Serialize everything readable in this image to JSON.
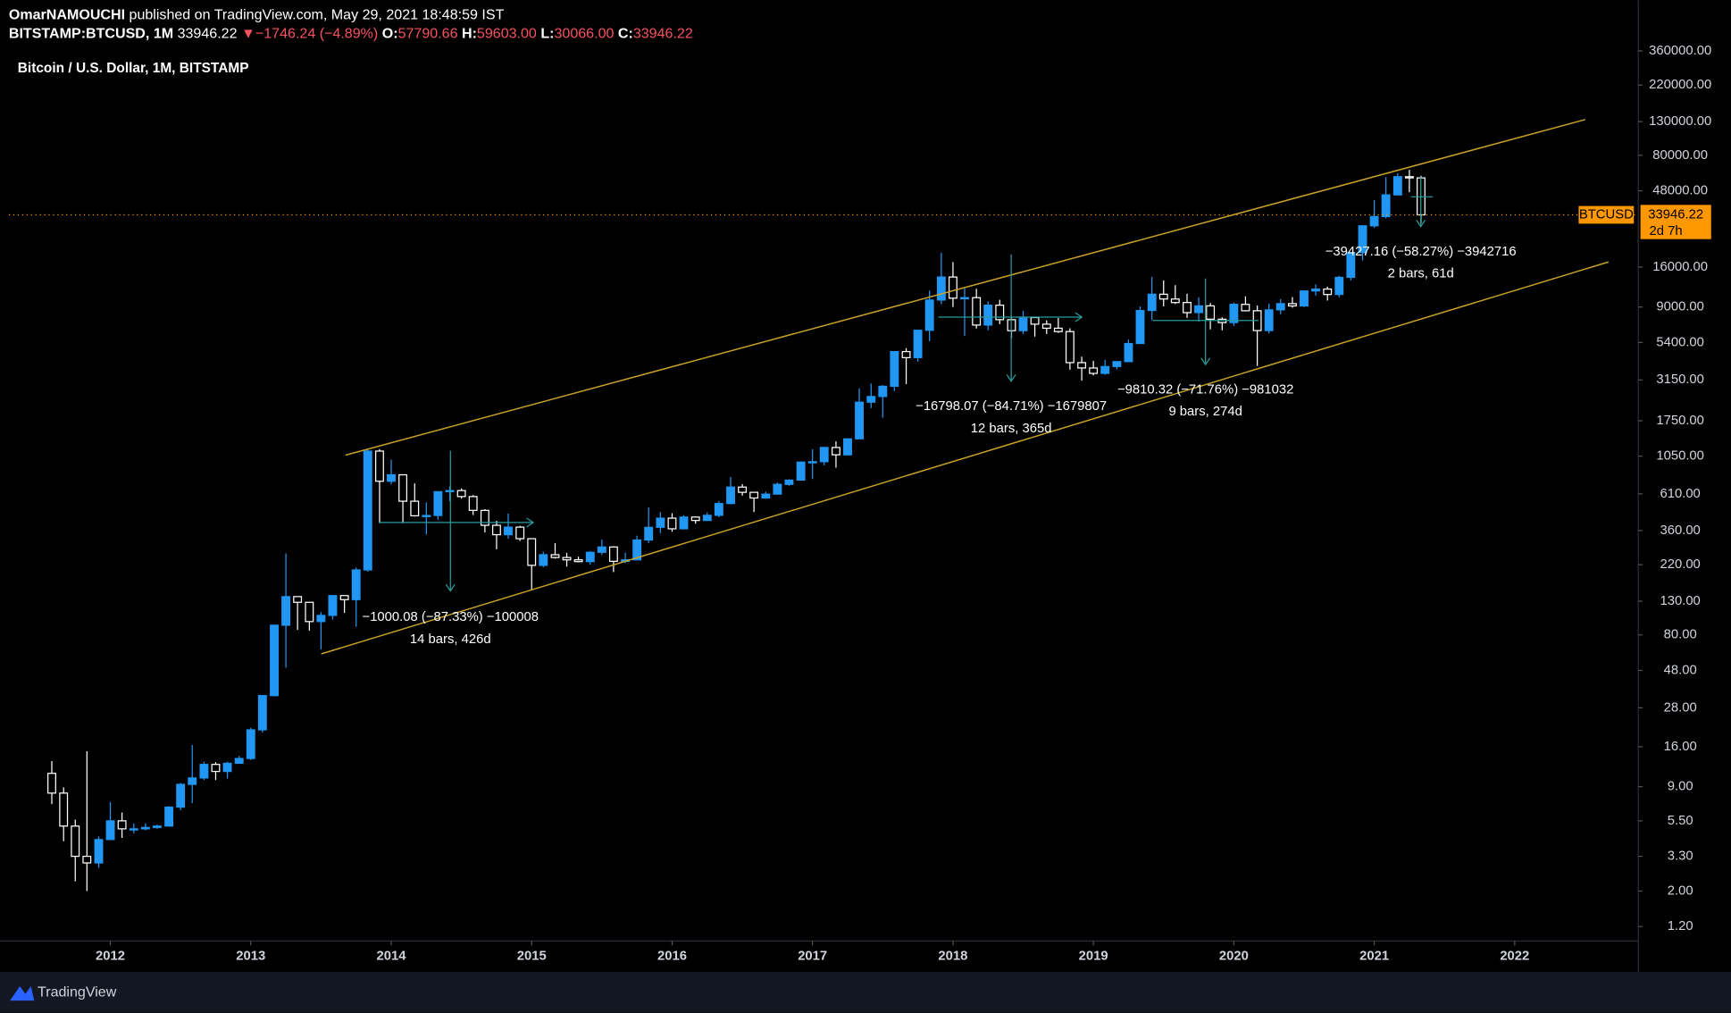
{
  "header": {
    "author": "OmarNAMOUCHI",
    "published": "published on TradingView.com, May 29, 2021 18:48:59 IST",
    "symbol": "BITSTAMP:BTCUSD, 1M",
    "last": "33946.22",
    "arrow": "▼",
    "change": "−1746.24 (−4.89%)",
    "ohlc": [
      {
        "label": "O:",
        "value": "57790.66"
      },
      {
        "label": "H:",
        "value": "59603.00"
      },
      {
        "label": "L:",
        "value": "30066.00"
      },
      {
        "label": "C:",
        "value": "33946.22"
      }
    ]
  },
  "footer": {
    "brand": "TradingView"
  },
  "chart_data": {
    "type": "candlestick",
    "title": "Bitcoin / U.S. Dollar, 1M, BITSTAMP",
    "log_scale": true,
    "grid": false,
    "up_color": "#2196f3",
    "down_color": "#ffffff",
    "x": [
      2011.583,
      2011.667,
      2011.75,
      2011.833,
      2011.917,
      2012.0,
      2012.083,
      2012.167,
      2012.25,
      2012.333,
      2012.417,
      2012.5,
      2012.583,
      2012.667,
      2012.75,
      2012.833,
      2012.917,
      2013.0,
      2013.083,
      2013.167,
      2013.25,
      2013.333,
      2013.417,
      2013.5,
      2013.583,
      2013.667,
      2013.75,
      2013.833,
      2013.917,
      2014.0,
      2014.083,
      2014.167,
      2014.25,
      2014.333,
      2014.417,
      2014.5,
      2014.583,
      2014.667,
      2014.75,
      2014.833,
      2014.917,
      2015.0,
      2015.083,
      2015.167,
      2015.25,
      2015.333,
      2015.417,
      2015.5,
      2015.583,
      2015.667,
      2015.75,
      2015.833,
      2015.917,
      2016.0,
      2016.083,
      2016.167,
      2016.25,
      2016.333,
      2016.417,
      2016.5,
      2016.583,
      2016.667,
      2016.75,
      2016.833,
      2016.917,
      2017.0,
      2017.083,
      2017.167,
      2017.25,
      2017.333,
      2017.417,
      2017.5,
      2017.583,
      2017.667,
      2017.75,
      2017.833,
      2017.917,
      2018.0,
      2018.083,
      2018.167,
      2018.25,
      2018.333,
      2018.417,
      2018.5,
      2018.583,
      2018.667,
      2018.75,
      2018.833,
      2018.917,
      2019.0,
      2019.083,
      2019.167,
      2019.25,
      2019.333,
      2019.417,
      2019.5,
      2019.583,
      2019.667,
      2019.75,
      2019.833,
      2019.917,
      2020.0,
      2020.083,
      2020.167,
      2020.25,
      2020.333,
      2020.417,
      2020.5,
      2020.583,
      2020.667,
      2020.75,
      2020.833,
      2020.917,
      2021.0,
      2021.083,
      2021.167,
      2021.25,
      2021.333
    ],
    "open": [
      10.9,
      8.2,
      5.1,
      3.3,
      3.0,
      4.2,
      5.5,
      4.9,
      4.9,
      5.0,
      5.1,
      6.7,
      9.3,
      10.2,
      12.4,
      11.2,
      12.6,
      13.5,
      20.4,
      33.4,
      92,
      139,
      128,
      97,
      106,
      141,
      133,
      204,
      1130,
      732,
      803,
      549,
      445,
      447,
      630,
      640,
      587,
      481,
      388,
      339,
      378,
      320,
      218,
      254,
      244,
      236,
      230,
      263,
      284,
      231,
      236,
      314,
      377,
      430,
      369,
      437,
      416,
      448,
      531,
      673,
      624,
      575,
      608,
      700,
      744,
      964,
      970,
      1190,
      1071,
      1348,
      2286,
      2480,
      2875,
      4735,
      4340,
      6440,
      9950,
      13860,
      10220,
      10300,
      6940,
      9240,
      7500,
      6400,
      7730,
      7030,
      6630,
      6320,
      4040,
      3740,
      3460,
      3820,
      4100,
      5320,
      8560,
      10820,
      10100,
      9600,
      8300,
      9150,
      7550,
      7190,
      9350,
      8530,
      6410,
      8640,
      9450,
      9140,
      11340,
      11650,
      10780,
      13800,
      19700,
      28990,
      33110,
      45240,
      58800,
      57790.66
    ],
    "high": [
      13,
      8.9,
      5.6,
      15,
      4.4,
      7.2,
      6.2,
      5.3,
      5.3,
      5.2,
      6.8,
      9.5,
      16.4,
      12.9,
      12.8,
      12.9,
      14.0,
      21,
      33.5,
      93,
      259,
      139,
      129,
      111,
      141,
      141,
      211,
      1163,
      1163,
      1000,
      803,
      710,
      540,
      630,
      680,
      660,
      600,
      490,
      414,
      460,
      385,
      321,
      265,
      300,
      261,
      247,
      268,
      316,
      287,
      262,
      334,
      502,
      470,
      462,
      448,
      440,
      467,
      550,
      778,
      702,
      625,
      628,
      718,
      751,
      974,
      1160,
      1200,
      1300,
      1350,
      2790,
      2990,
      2920,
      4750,
      4975,
      6450,
      11400,
      19666,
      17180,
      11800,
      11700,
      9760,
      9990,
      7760,
      8500,
      7750,
      7420,
      7680,
      6620,
      4400,
      4140,
      4200,
      4120,
      5630,
      9070,
      13880,
      13200,
      12330,
      10900,
      10370,
      9530,
      7750,
      9600,
      10500,
      9190,
      9460,
      10080,
      10380,
      11440,
      12470,
      12060,
      14100,
      19940,
      29300,
      41950,
      58370,
      61780,
      64900,
      59603
    ],
    "low": [
      7,
      4.1,
      2.3,
      2.0,
      2.8,
      4.2,
      4.3,
      4.6,
      4.8,
      4.9,
      5.1,
      6.4,
      7.1,
      9.9,
      9.9,
      10.1,
      12.6,
      13.2,
      19.6,
      33,
      50,
      86,
      85,
      65,
      100,
      110,
      90,
      199,
      400,
      700,
      400,
      440,
      340,
      420,
      550,
      570,
      450,
      350,
      275,
      320,
      310,
      152,
      212,
      240,
      214,
      228,
      220,
      253,
      198,
      225,
      236,
      300,
      347,
      354,
      366,
      397,
      413,
      436,
      525,
      595,
      470,
      569,
      604,
      686,
      743,
      755,
      920,
      890,
      1060,
      1348,
      2100,
      1830,
      2690,
      2970,
      4100,
      5500,
      9380,
      9000,
      5920,
      6600,
      6430,
      7030,
      5750,
      6090,
      5880,
      6100,
      6200,
      3650,
      3120,
      3360,
      3390,
      3670,
      4100,
      5320,
      7450,
      9080,
      9400,
      7700,
      7300,
      6520,
      6430,
      6850,
      8450,
      3850,
      6150,
      8110,
      8910,
      8990,
      10600,
      9880,
      10370,
      13200,
      17600,
      28130,
      32290,
      45000,
      47000,
      30066
    ],
    "close": [
      8.2,
      5.1,
      3.3,
      3.0,
      4.2,
      5.5,
      4.9,
      4.9,
      5.0,
      5.1,
      6.7,
      9.3,
      10.2,
      12.4,
      11.2,
      12.6,
      13.5,
      20.4,
      33.4,
      92,
      139,
      128,
      97,
      106,
      141,
      133,
      204,
      1130,
      732,
      803,
      549,
      445,
      447,
      630,
      640,
      587,
      481,
      388,
      339,
      378,
      320,
      218,
      254,
      244,
      236,
      230,
      263,
      284,
      231,
      236,
      314,
      377,
      430,
      369,
      437,
      416,
      448,
      531,
      673,
      624,
      575,
      608,
      700,
      744,
      964,
      970,
      1190,
      1071,
      1348,
      2286,
      2480,
      2875,
      4735,
      4340,
      6440,
      9950,
      13860,
      10220,
      10300,
      6940,
      9240,
      7500,
      6400,
      7730,
      7030,
      6630,
      6320,
      4040,
      3740,
      3460,
      3820,
      4100,
      5320,
      8560,
      10820,
      10100,
      9600,
      8300,
      9150,
      7550,
      7190,
      9350,
      8530,
      6410,
      8640,
      9450,
      9140,
      11340,
      11650,
      10780,
      13800,
      19700,
      28990,
      33110,
      45240,
      58800,
      57790.66,
      33946.22
    ],
    "xlim": [
      2011.277,
      2022.88
    ],
    "xticks": [
      2012,
      2013,
      2014,
      2015,
      2016,
      2017,
      2018,
      2019,
      2020,
      2021,
      2022
    ],
    "ylim": [
      0.975,
      395000
    ],
    "yticks": [
      {
        "value": 1.2,
        "label": "1.20"
      },
      {
        "value": 2,
        "label": "2.00"
      },
      {
        "value": 3.3,
        "label": "3.30"
      },
      {
        "value": 5.5,
        "label": "5.50"
      },
      {
        "value": 9,
        "label": "9.00"
      },
      {
        "value": 16,
        "label": "16.00"
      },
      {
        "value": 28,
        "label": "28.00"
      },
      {
        "value": 48,
        "label": "48.00"
      },
      {
        "value": 80,
        "label": "80.00"
      },
      {
        "value": 130,
        "label": "130.00"
      },
      {
        "value": 220,
        "label": "220.00"
      },
      {
        "value": 360,
        "label": "360.00"
      },
      {
        "value": 610,
        "label": "610.00"
      },
      {
        "value": 1050,
        "label": "1050.00"
      },
      {
        "value": 1750,
        "label": "1750.00"
      },
      {
        "value": 3150,
        "label": "3150.00"
      },
      {
        "value": 5400,
        "label": "5400.00"
      },
      {
        "value": 9000,
        "label": "9000.00"
      },
      {
        "value": 16000,
        "label": "16000.00"
      },
      {
        "value": 48000,
        "label": "48000.00"
      },
      {
        "value": 80000,
        "label": "80000.00"
      },
      {
        "value": 130000,
        "label": "130000.00"
      },
      {
        "value": 220000,
        "label": "220000.00"
      },
      {
        "value": 360000,
        "label": "360000.00"
      }
    ],
    "price_label": {
      "name": "BTCUSD",
      "value_label": "33946.22",
      "countdown": "2d 7h",
      "color": "#ff9800"
    },
    "annotations": [
      {
        "change": "−1000.08 (−87.33%) −100008",
        "span": "14 bars, 426d"
      },
      {
        "change": "−16798.07 (−84.71%) −1679807",
        "span": "12 bars, 365d"
      },
      {
        "change": "−9810.32 (−71.76%) −981032",
        "span": "9 bars, 274d"
      },
      {
        "change": "−39427.16 (−58.27%) −3942716",
        "span": "2 bars, 61d"
      }
    ]
  }
}
